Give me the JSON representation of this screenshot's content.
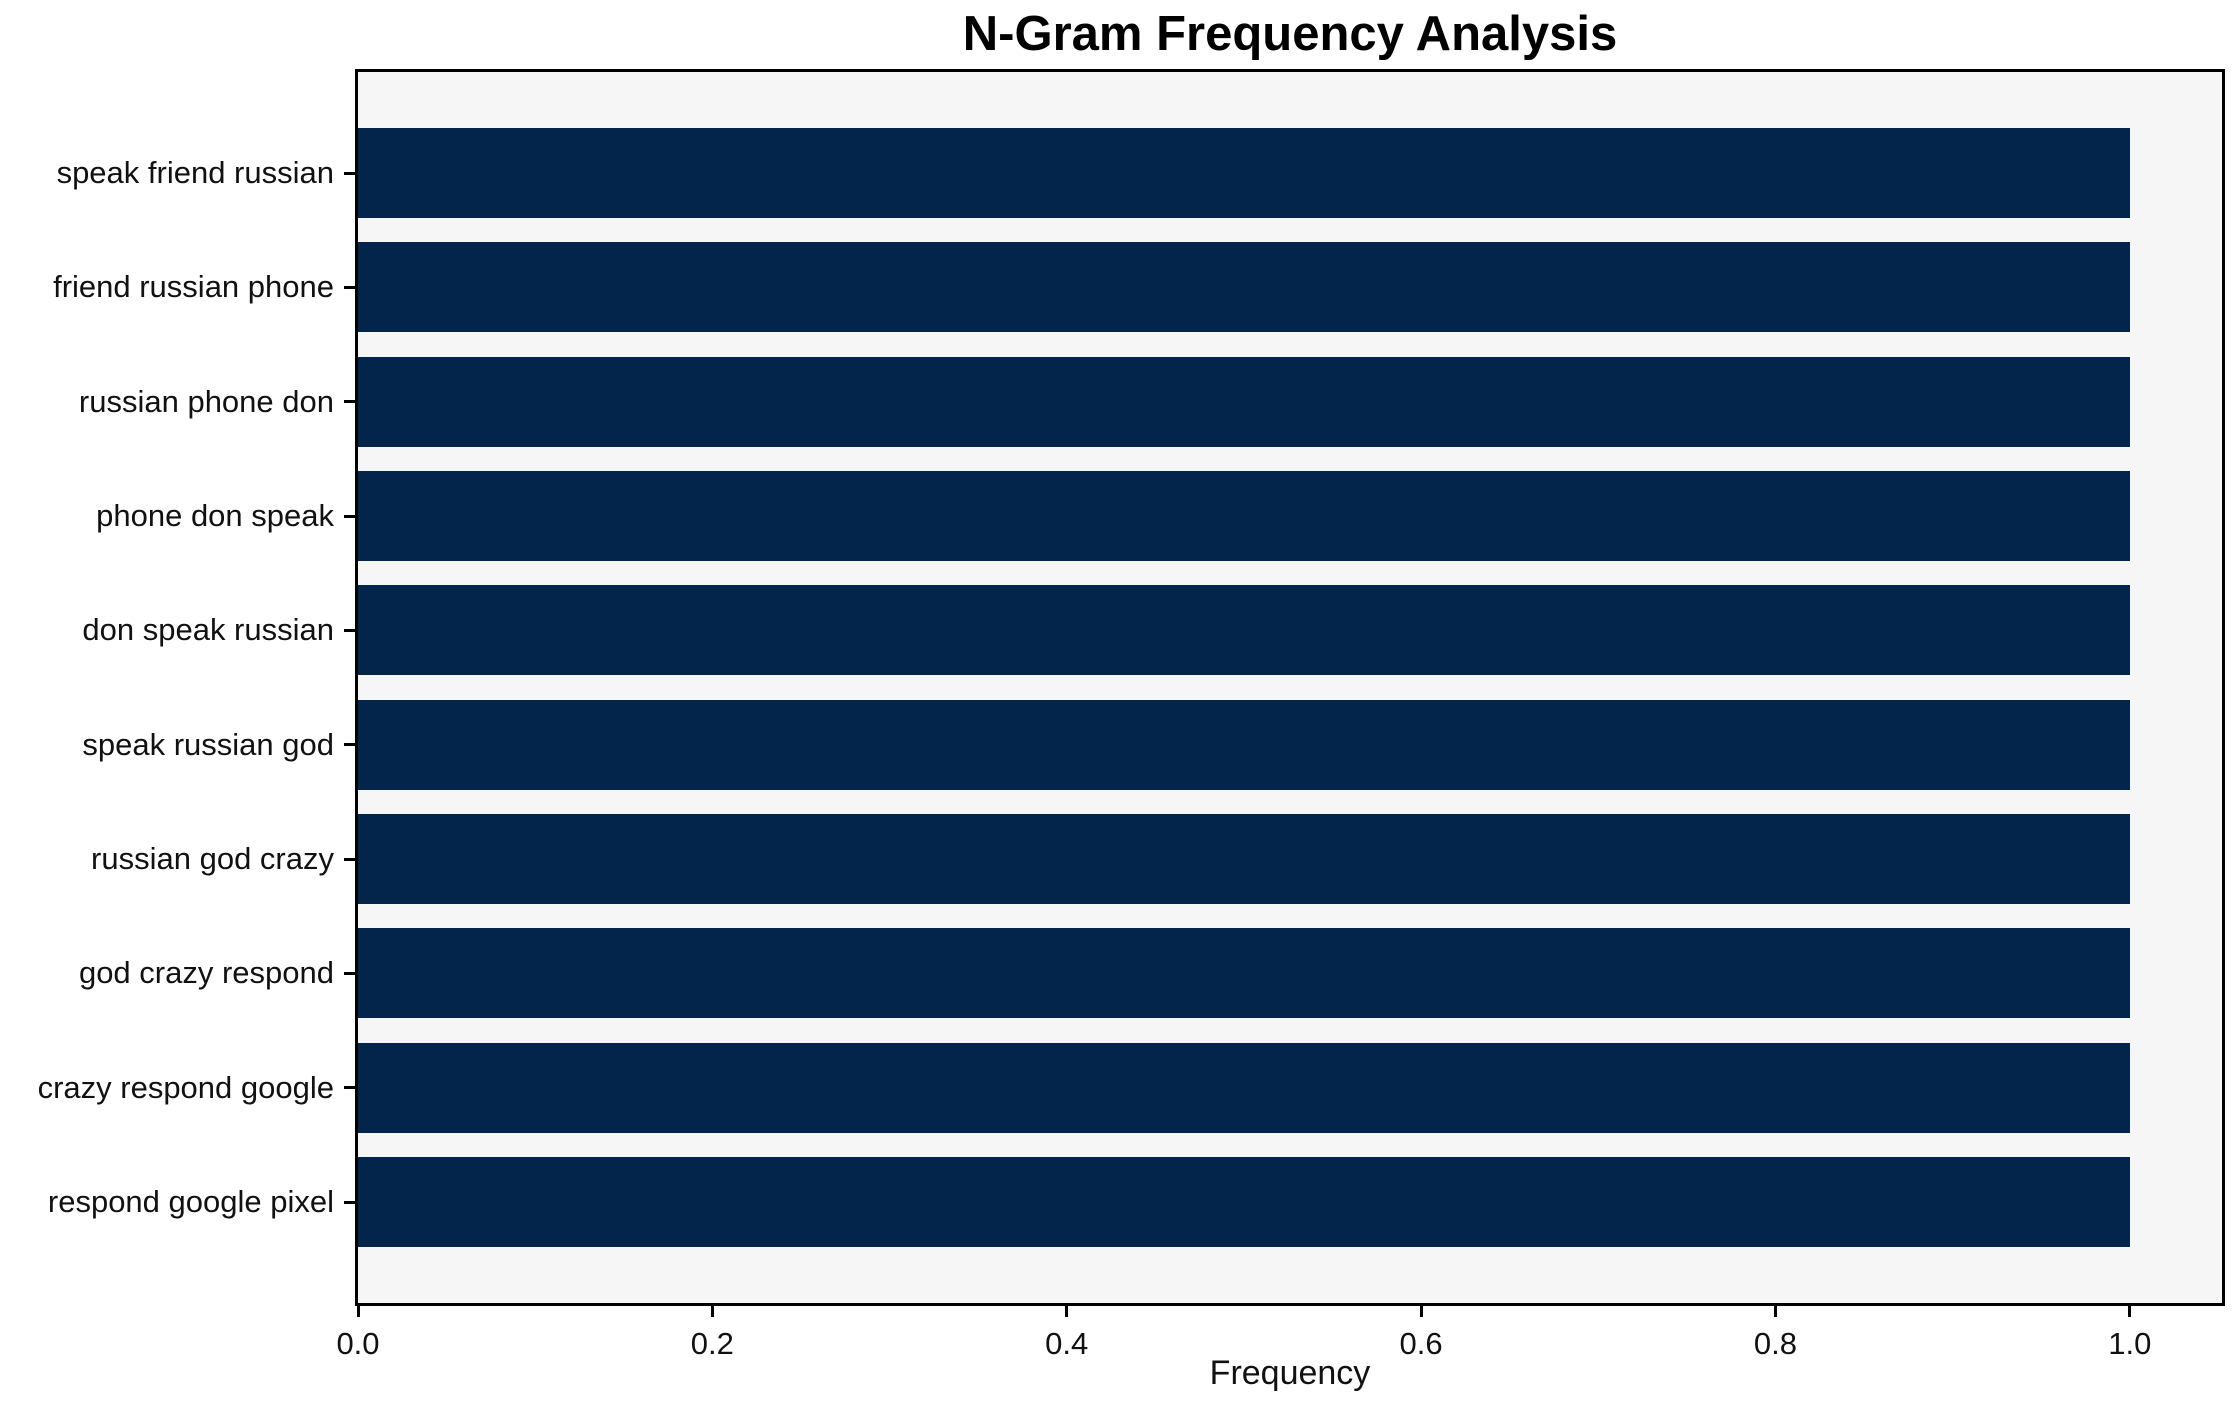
{
  "page": {
    "background": "#ffffff"
  },
  "chart_data": {
    "type": "bar",
    "orientation": "horizontal",
    "title": "N-Gram Frequency Analysis",
    "xlabel": "Frequency",
    "ylabel": "",
    "categories": [
      "speak friend russian",
      "friend russian phone",
      "russian phone don",
      "phone don speak",
      "don speak russian",
      "speak russian god",
      "russian god crazy",
      "god crazy respond",
      "crazy respond google",
      "respond google pixel"
    ],
    "values": [
      1.0,
      1.0,
      1.0,
      1.0,
      1.0,
      1.0,
      1.0,
      1.0,
      1.0,
      1.0
    ],
    "xlim": [
      0,
      1.052
    ],
    "xticks": [
      {
        "value": 0.0,
        "label": "0.0"
      },
      {
        "value": 0.2,
        "label": "0.2"
      },
      {
        "value": 0.4,
        "label": "0.4"
      },
      {
        "value": 0.6,
        "label": "0.6"
      },
      {
        "value": 0.8,
        "label": "0.8"
      },
      {
        "value": 1.0,
        "label": "1.0"
      }
    ],
    "grid": false,
    "legend": null,
    "bar_color": "#03254c",
    "plot_bg": "#f6f6f6",
    "axis_color": "#000000",
    "text_color": "#111111"
  }
}
